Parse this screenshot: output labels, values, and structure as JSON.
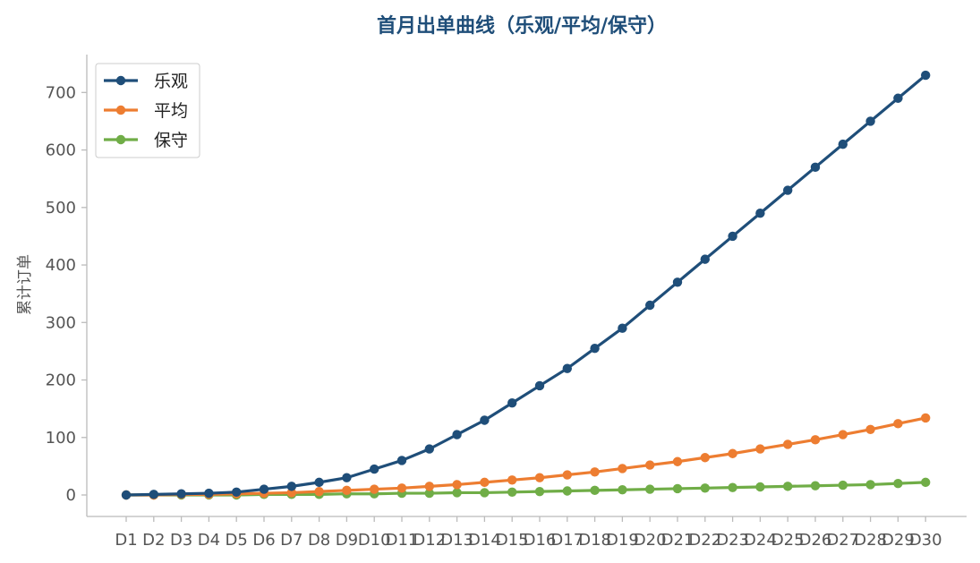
{
  "chart_data": {
    "type": "line",
    "title": "首月出单曲线（乐观/平均/保守）",
    "title_color": "#1f4e79",
    "xlabel": "",
    "ylabel": "累计订单",
    "ylim": [
      -35,
      770
    ],
    "yticks": [
      0,
      100,
      200,
      300,
      400,
      500,
      600,
      700
    ],
    "grid": false,
    "legend_position": "top-left",
    "categories": [
      "D1",
      "D2",
      "D3",
      "D4",
      "D5",
      "D6",
      "D7",
      "D8",
      "D9",
      "D10",
      "D11",
      "D12",
      "D13",
      "D14",
      "D15",
      "D16",
      "D17",
      "D18",
      "D19",
      "D20",
      "D21",
      "D22",
      "D23",
      "D24",
      "D25",
      "D26",
      "D27",
      "D28",
      "D29",
      "D30"
    ],
    "series": [
      {
        "name": "乐观",
        "color": "#1f4e79",
        "values": [
          0,
          1,
          2,
          3,
          5,
          10,
          15,
          22,
          30,
          45,
          60,
          80,
          105,
          130,
          160,
          190,
          220,
          255,
          290,
          330,
          370,
          410,
          450,
          490,
          530,
          570,
          610,
          650,
          690,
          730
        ]
      },
      {
        "name": "平均",
        "color": "#ed7d31",
        "values": [
          0,
          0,
          1,
          1,
          2,
          3,
          4,
          6,
          8,
          10,
          12,
          15,
          18,
          22,
          26,
          30,
          35,
          40,
          46,
          52,
          58,
          65,
          72,
          80,
          88,
          96,
          105,
          114,
          124,
          134
        ]
      },
      {
        "name": "保守",
        "color": "#70ad47",
        "values": [
          0,
          0,
          0,
          0,
          0,
          1,
          1,
          1,
          2,
          2,
          3,
          3,
          4,
          4,
          5,
          6,
          7,
          8,
          9,
          10,
          11,
          12,
          13,
          14,
          15,
          16,
          17,
          18,
          20,
          22
        ]
      }
    ]
  }
}
